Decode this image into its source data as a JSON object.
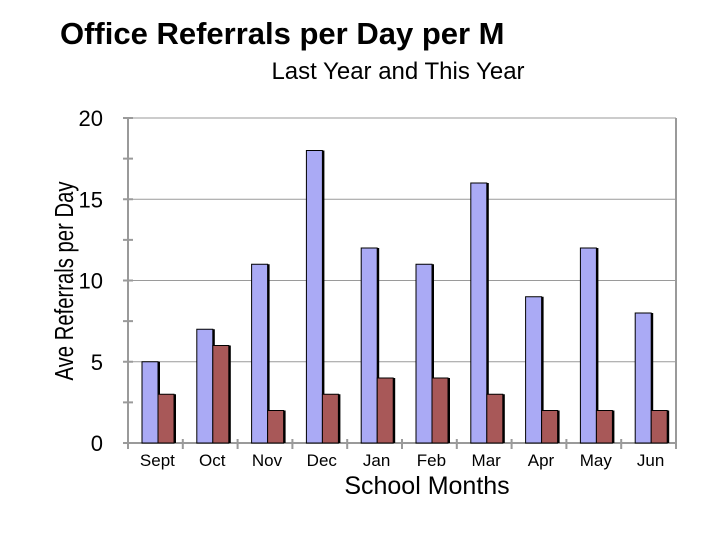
{
  "chart_data": {
    "type": "bar",
    "title": "Office Referrals per Day per M",
    "subtitle": "Last Year and This Year",
    "xlabel": "School Months",
    "ylabel": "Ave Referrals per Day",
    "categories": [
      "Sept",
      "Oct",
      "Nov",
      "Dec",
      "Jan",
      "Feb",
      "Mar",
      "Apr",
      "May",
      "Jun"
    ],
    "series": [
      {
        "values": [
          5,
          7,
          11,
          18,
          12,
          11,
          16,
          9,
          12,
          8
        ],
        "color": "#aaaaf5"
      },
      {
        "values": [
          3,
          6,
          2,
          3,
          4,
          4,
          3,
          2,
          2,
          2
        ],
        "color": "#a85858"
      }
    ],
    "ylim": [
      0,
      20
    ],
    "yticks": [
      0,
      5,
      10,
      15,
      20
    ],
    "grid": true,
    "legend": "none"
  }
}
